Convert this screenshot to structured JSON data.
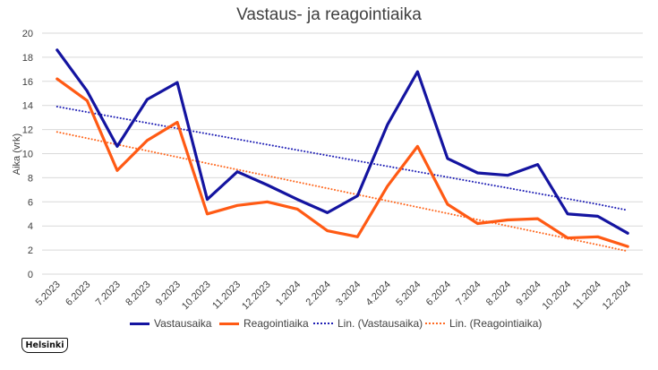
{
  "chart_data": {
    "type": "line",
    "title": "Vastaus- ja reagointiaika",
    "xlabel": "",
    "ylabel": "Aika (vrk)",
    "ylim": [
      0,
      20
    ],
    "yticks": [
      0,
      2,
      4,
      6,
      8,
      10,
      12,
      14,
      16,
      18,
      20
    ],
    "grid": true,
    "legend_position": "bottom",
    "categories": [
      "5.2023",
      "6.2023",
      "7.2023",
      "8.2023",
      "9.2023",
      "10.2023",
      "11.2023",
      "12.2023",
      "1.2024",
      "2.2024",
      "3.2024",
      "4.2024",
      "5.2024",
      "6.2024",
      "7.2024",
      "8.2024",
      "9.2024",
      "10.2024",
      "11.2024",
      "12.2024"
    ],
    "series": [
      {
        "name": "Vastausaika",
        "color": "#1414a0",
        "style": "solid",
        "values": [
          18.6,
          15.2,
          10.6,
          14.5,
          15.9,
          6.2,
          8.5,
          7.4,
          6.2,
          5.1,
          6.5,
          12.4,
          16.8,
          9.6,
          8.4,
          8.2,
          9.1,
          5.0,
          4.8,
          3.4
        ]
      },
      {
        "name": "Reagointiaika",
        "color": "#ff5a14",
        "style": "solid",
        "values": [
          16.2,
          14.4,
          8.6,
          11.1,
          12.6,
          5.0,
          5.7,
          6.0,
          5.4,
          3.6,
          3.1,
          7.3,
          10.6,
          5.8,
          4.2,
          4.5,
          4.6,
          3.0,
          3.1,
          2.3
        ]
      },
      {
        "name": "Lin. (Vastausaika)",
        "color": "#1f1fb5",
        "style": "dotted",
        "values": [
          13.9,
          13.45,
          13.0,
          12.55,
          12.1,
          11.65,
          11.2,
          10.75,
          10.3,
          9.85,
          9.4,
          8.95,
          8.5,
          8.05,
          7.6,
          7.15,
          6.7,
          6.25,
          5.8,
          5.3
        ]
      },
      {
        "name": "Lin. (Reagointiaika)",
        "color": "#ff6a22",
        "style": "dotted",
        "values": [
          11.8,
          11.28,
          10.76,
          10.24,
          9.72,
          9.2,
          8.68,
          8.16,
          7.64,
          7.12,
          6.6,
          6.08,
          5.56,
          5.04,
          4.52,
          4.0,
          3.48,
          2.96,
          2.44,
          1.9
        ]
      }
    ]
  },
  "logo": {
    "text": "Helsinki"
  }
}
